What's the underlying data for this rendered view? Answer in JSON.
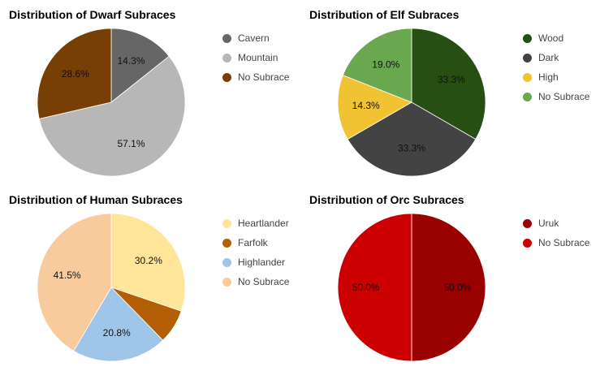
{
  "chart_data": [
    {
      "type": "pie",
      "title": "Distribution of Dwarf Subraces",
      "slices": [
        {
          "label": "Cavern",
          "value": 14.3,
          "color": "#666666"
        },
        {
          "label": "Mountain",
          "value": 57.1,
          "color": "#b7b7b7"
        },
        {
          "label": "No Subrace",
          "value": 28.6,
          "color": "#783f04"
        }
      ],
      "legend_position": "right"
    },
    {
      "type": "pie",
      "title": "Distribution of Elf Subraces",
      "slices": [
        {
          "label": "Wood",
          "value": 33.3,
          "color": "#274e13"
        },
        {
          "label": "Dark",
          "value": 33.3,
          "color": "#434343"
        },
        {
          "label": "High",
          "value": 14.3,
          "color": "#f1c232"
        },
        {
          "label": "No Subrace",
          "value": 19.0,
          "color": "#6aa84f"
        }
      ],
      "legend_position": "right"
    },
    {
      "type": "pie",
      "title": "Distribution of Human Subraces",
      "slices": [
        {
          "label": "Heartlander",
          "value": 30.2,
          "color": "#ffe599"
        },
        {
          "label": "Farfolk",
          "value": 7.5,
          "color": "#b45f06"
        },
        {
          "label": "Highlander",
          "value": 20.8,
          "color": "#9fc5e8"
        },
        {
          "label": "No Subrace",
          "value": 41.5,
          "color": "#f9cb9c"
        }
      ],
      "legend_position": "right"
    },
    {
      "type": "pie",
      "title": "Distribution of Orc Subraces",
      "slices": [
        {
          "label": "Uruk",
          "value": 50.0,
          "color": "#990000"
        },
        {
          "label": "No Subrace",
          "value": 50.0,
          "color": "#cc0000"
        }
      ],
      "legend_position": "right"
    }
  ]
}
